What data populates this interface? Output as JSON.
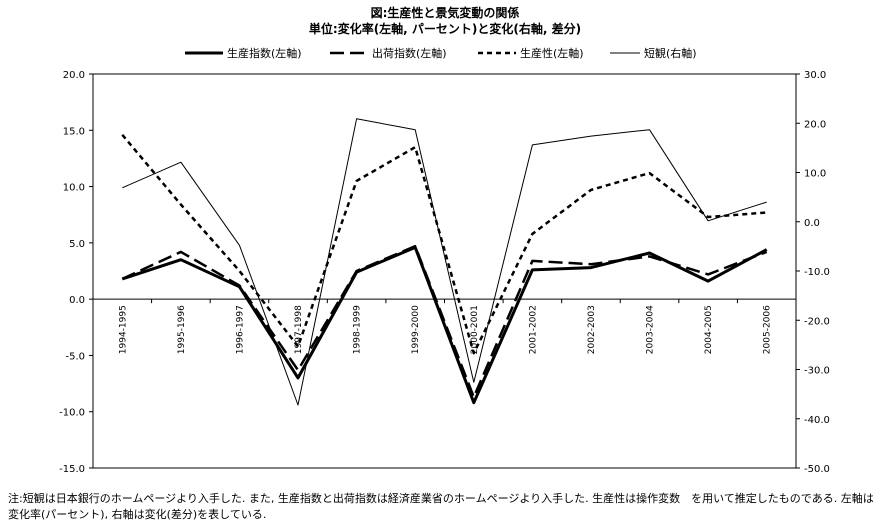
{
  "chart_data": {
    "type": "line",
    "title": "図:生産性と景気変動の関係",
    "subtitle": "単位:変化率(左軸, パーセント)と変化(右軸, 差分)",
    "categories": [
      "1994-1995",
      "1995-1996",
      "1996-1997",
      "1997-1998",
      "1998-1999",
      "1999-2000",
      "2000-2001",
      "2001-2002",
      "2002-2003",
      "2003-2004",
      "2004-2005",
      "2005-2006"
    ],
    "left_axis": {
      "min": -15,
      "max": 20,
      "step": 5,
      "ticks": [
        "20.0",
        "15.0",
        "10.0",
        "5.0",
        "0.0",
        "-5.0",
        "-10.0",
        "-15.0"
      ]
    },
    "right_axis": {
      "min": -50,
      "max": 30,
      "step": 10,
      "ticks": [
        "30.0",
        "20.0",
        "10.0",
        "0.0",
        "-10.0",
        "-20.0",
        "-30.0",
        "-40.0",
        "-50.0"
      ]
    },
    "series": [
      {
        "name": "生産指数(左軸)",
        "axis": "left",
        "style": "thick-solid",
        "values": [
          1.8,
          3.5,
          1.1,
          -7.0,
          2.4,
          4.6,
          -9.2,
          2.6,
          2.8,
          4.1,
          1.6,
          4.4
        ]
      },
      {
        "name": "出荷指数(左軸)",
        "axis": "left",
        "style": "long-dash",
        "values": [
          1.8,
          4.2,
          1.2,
          -6.3,
          2.5,
          4.7,
          -8.7,
          3.4,
          3.1,
          3.8,
          2.2,
          4.2
        ]
      },
      {
        "name": "生産性(左軸)",
        "axis": "left",
        "style": "short-dash",
        "values": [
          14.6,
          8.4,
          2.5,
          -4.2,
          10.5,
          13.5,
          -4.8,
          5.8,
          9.7,
          11.2,
          7.3,
          7.7
        ]
      },
      {
        "name": "短観(右軸)",
        "axis": "right",
        "style": "thin-solid",
        "values": [
          6.9,
          12.1,
          -4.8,
          -37.2,
          20.9,
          18.7,
          -32.6,
          15.6,
          17.4,
          18.7,
          0.2,
          4.0
        ]
      }
    ],
    "legend_placement": "top",
    "grid": false
  },
  "note": "注:短観は日本銀行のホームページより入手した. また, 生産指数と出荷指数は経済産業省のホームページより入手した. 生産性は操作変数　を用いて推定したものである. 左軸は変化率(パーセント), 右軸は変化(差分)を表している."
}
